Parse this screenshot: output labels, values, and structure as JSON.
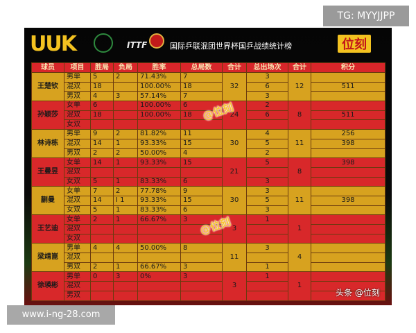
{
  "overlay": {
    "tag": "TG: MYYJJPP",
    "url": "www.i-ng-28.com"
  },
  "header": {
    "logo": "UUK",
    "ittf": "ITTF",
    "title": "国际乒联混团世界杯国乒战绩统计榜",
    "brand": "位刻"
  },
  "watermarks": [
    "@位刻",
    "@位刻",
    "头条 @位刻"
  ],
  "table": {
    "columns": [
      "球员",
      "项目",
      "胜局",
      "负局",
      "胜率",
      "总局数",
      "合计",
      "总出场次",
      "合计",
      "积分"
    ],
    "groups": [
      {
        "player": "王楚钦",
        "sum_games": "32",
        "sum_appear": "12",
        "rows": [
          [
            "男单",
            "5",
            "2",
            "71.43%",
            "7",
            "3",
            null
          ],
          [
            "混双",
            "18",
            null,
            "100.00%",
            "18",
            "6",
            "511"
          ],
          [
            "男双",
            "4",
            "3",
            "57.14%",
            "7",
            "3",
            null
          ]
        ]
      },
      {
        "player": "孙颖莎",
        "sum_games": "24",
        "sum_appear": "8",
        "rows": [
          [
            "女单",
            "6",
            null,
            "100.00%",
            "6",
            "2",
            null
          ],
          [
            "混双",
            "18",
            null,
            "100.00%",
            "18",
            "6",
            "511"
          ],
          [
            "女双",
            null,
            null,
            null,
            null,
            null,
            null
          ]
        ]
      },
      {
        "player": "林诗栋",
        "sum_games": "30",
        "sum_appear": "11",
        "rows": [
          [
            "男单",
            "9",
            "2",
            "81.82%",
            "11",
            "4",
            "256"
          ],
          [
            "混双",
            "14",
            "1",
            "93.33%",
            "15",
            "5",
            "398"
          ],
          [
            "男双",
            "2",
            "2",
            "50.00%",
            "4",
            "2",
            null
          ]
        ]
      },
      {
        "player": "王曼昱",
        "sum_games": "21",
        "sum_appear": "8",
        "rows": [
          [
            "女单",
            "14",
            "1",
            "93.33%",
            "15",
            "5",
            "398"
          ],
          [
            "混双",
            null,
            null,
            null,
            null,
            null,
            null
          ],
          [
            "女双",
            "5",
            "1",
            "83.33%",
            "6",
            "3",
            null
          ]
        ]
      },
      {
        "player": "蒯曼",
        "sum_games": "30",
        "sum_appear": "11",
        "rows": [
          [
            "女单",
            "7",
            "2",
            "77.78%",
            "9",
            "3",
            null
          ],
          [
            "混双",
            "14",
            "I 1",
            "93.33%",
            "15",
            "5",
            "398"
          ],
          [
            "女双",
            "5",
            "1",
            "83.33%",
            "6",
            "3",
            null
          ]
        ]
      },
      {
        "player": "王艺迪",
        "sum_games": "3",
        "sum_appear": "1",
        "rows": [
          [
            "女单",
            "2",
            "1",
            "66.67%",
            "3",
            "1",
            null
          ],
          [
            "混双",
            null,
            null,
            null,
            null,
            null,
            null
          ],
          [
            "女双",
            null,
            null,
            null,
            null,
            null,
            null
          ]
        ]
      },
      {
        "player": "梁靖崑",
        "sum_games": "11",
        "sum_appear": "4",
        "rows": [
          [
            "男单",
            "4",
            "4",
            "50.00%",
            "8",
            "3",
            null
          ],
          [
            "混双",
            null,
            null,
            null,
            null,
            null,
            null
          ],
          [
            "男双",
            "2",
            "1",
            "66.67%",
            "3",
            "1",
            null
          ]
        ]
      },
      {
        "player": "徐瑛彬",
        "sum_games": "3",
        "sum_appear": "1",
        "rows": [
          [
            "男单",
            "0",
            "3",
            "0%",
            "3",
            "1",
            null
          ],
          [
            "混双",
            null,
            null,
            null,
            null,
            null,
            null
          ],
          [
            "男双",
            null,
            null,
            null,
            null,
            null,
            null
          ]
        ]
      }
    ]
  }
}
